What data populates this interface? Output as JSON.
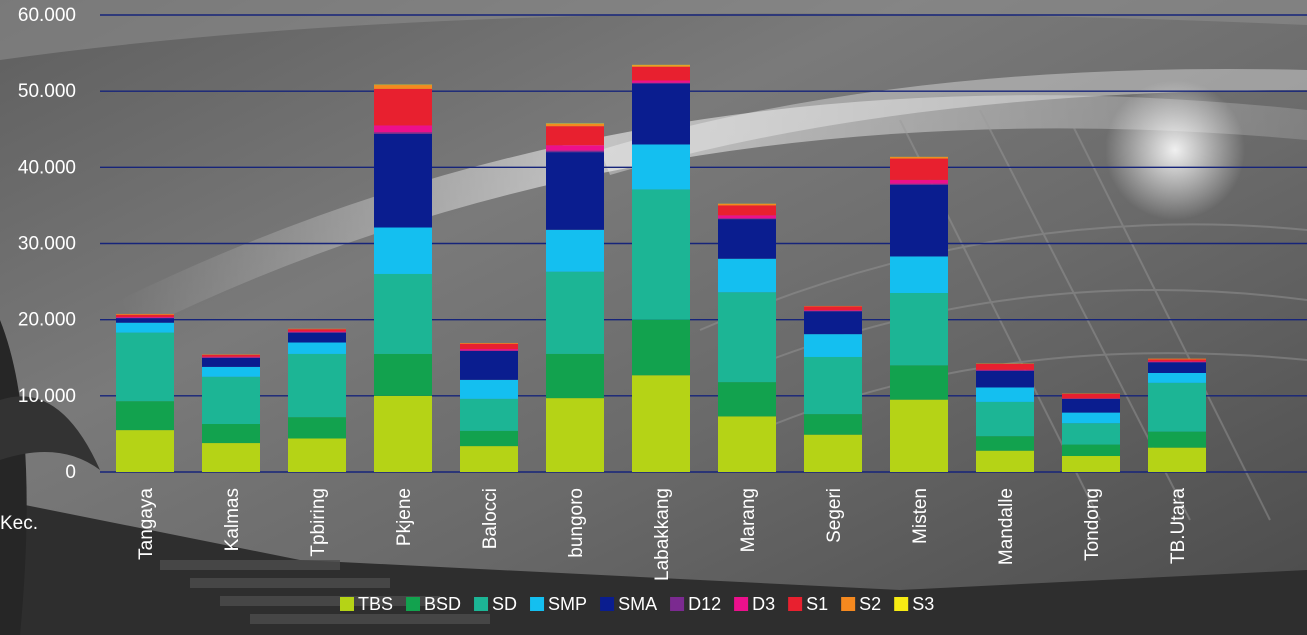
{
  "chart_data": {
    "type": "bar",
    "stacked": true,
    "xlabel": "Kec.",
    "ylim": [
      0,
      60000
    ],
    "y_ticks": [
      "0",
      "10.000",
      "20.000",
      "30.000",
      "40.000",
      "50.000",
      "60.000"
    ],
    "y_tick_values": [
      0,
      10000,
      20000,
      30000,
      40000,
      50000,
      60000
    ],
    "grid": true,
    "legend_position": "bottom",
    "categories": [
      "Tangaya",
      "Kalmas",
      "Tpbiring",
      "Pkjene",
      "Balocci",
      "bungoro",
      "Labakkang",
      "Marang",
      "Segeri",
      "Misten",
      "Mandalle",
      "Tondong",
      "TB.Utara"
    ],
    "series": [
      {
        "name": "TBS",
        "color": "#b5d316",
        "values": [
          5500,
          3800,
          4400,
          10000,
          3400,
          9700,
          12700,
          7300,
          4900,
          9500,
          2800,
          2100,
          3200
        ]
      },
      {
        "name": "BSD",
        "color": "#12a24e",
        "values": [
          3800,
          2500,
          2800,
          5500,
          2000,
          5800,
          7300,
          4500,
          2700,
          4500,
          1900,
          1500,
          2100
        ]
      },
      {
        "name": "SD",
        "color": "#1cb595",
        "values": [
          9000,
          6200,
          8300,
          10500,
          4200,
          10800,
          17100,
          11800,
          7500,
          9500,
          4500,
          2800,
          6400
        ]
      },
      {
        "name": "SMP",
        "color": "#14bff0",
        "values": [
          1300,
          1300,
          1500,
          6100,
          2500,
          5500,
          5900,
          4400,
          3000,
          4800,
          1900,
          1400,
          1300
        ]
      },
      {
        "name": "SMA",
        "color": "#0a1d8f",
        "values": [
          600,
          1200,
          1300,
          12300,
          3800,
          10200,
          8000,
          5200,
          3000,
          9400,
          2200,
          1800,
          1400
        ]
      },
      {
        "name": "D12",
        "color": "#7b2a90",
        "values": [
          50,
          40,
          50,
          200,
          40,
          200,
          100,
          100,
          50,
          150,
          30,
          20,
          30
        ]
      },
      {
        "name": "D3",
        "color": "#ec108c",
        "values": [
          100,
          100,
          100,
          900,
          200,
          700,
          300,
          400,
          100,
          500,
          100,
          50,
          100
        ]
      },
      {
        "name": "S1",
        "color": "#e8202f",
        "values": [
          300,
          250,
          300,
          4800,
          700,
          2500,
          1800,
          1300,
          500,
          2800,
          750,
          600,
          250
        ]
      },
      {
        "name": "S2",
        "color": "#f5891f",
        "values": [
          100,
          50,
          50,
          500,
          100,
          300,
          200,
          200,
          50,
          200,
          50,
          50,
          100
        ]
      },
      {
        "name": "S3",
        "color": "#f7ec13",
        "values": [
          0,
          0,
          0,
          50,
          0,
          50,
          50,
          20,
          0,
          20,
          0,
          0,
          0
        ]
      }
    ]
  }
}
